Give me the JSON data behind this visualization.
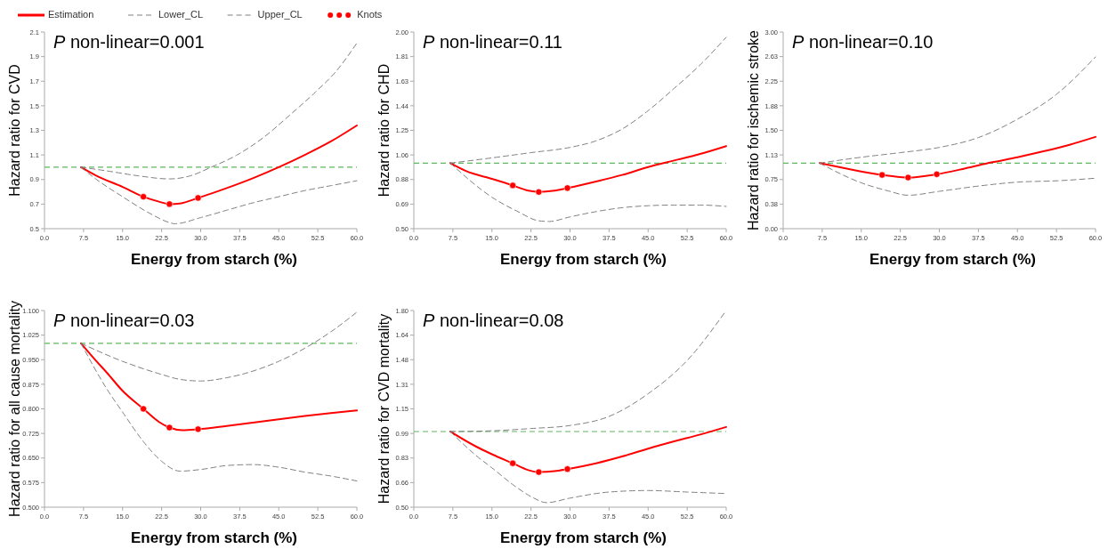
{
  "chart_data": [
    {
      "type": "line",
      "ylabel": "Hazard ratio for CVD",
      "xlabel": "Energy from starch (%)",
      "annotations": [
        "P non-linear=0.001"
      ],
      "legend": "top",
      "xlim": [
        0,
        60
      ],
      "ylim": [
        0.5,
        2.1
      ],
      "xticks": [
        {
          "value": 0,
          "label": "0.0"
        },
        7.5,
        {
          "value": 15,
          "label": "15.0"
        },
        22.5,
        {
          "value": 30,
          "label": "30.0"
        },
        37.5,
        {
          "value": 45,
          "label": "45.0"
        },
        52.5,
        {
          "value": 60,
          "label": "60.0"
        }
      ],
      "yticks": [
        0.5,
        0.7,
        0.9,
        1.1,
        1.3,
        1.5,
        1.7,
        1.9,
        2.1
      ],
      "ref_lines": [
        {
          "axis": "y",
          "value": 1,
          "color": "#5cb85c",
          "line_style": "dashed"
        }
      ],
      "series": [
        {
          "name": "Estimation",
          "type": "line",
          "color": "#ff0000",
          "line_style": "solid",
          "x": [
            7,
            10,
            15,
            19,
            22,
            24,
            26,
            29.5,
            35,
            40,
            45,
            50,
            55,
            60
          ],
          "values": [
            1.0,
            0.93,
            0.84,
            0.76,
            0.72,
            0.7,
            0.705,
            0.75,
            0.83,
            0.91,
            1.0,
            1.1,
            1.21,
            1.34
          ]
        },
        {
          "name": "Lower_CL",
          "type": "line",
          "color": "#808080",
          "line_style": "dashed",
          "x": [
            7,
            10,
            15,
            20,
            24,
            25,
            30,
            35,
            40,
            45,
            50,
            55,
            60
          ],
          "values": [
            1.0,
            0.9,
            0.76,
            0.63,
            0.55,
            0.54,
            0.59,
            0.65,
            0.71,
            0.76,
            0.81,
            0.85,
            0.89
          ]
        },
        {
          "name": "Upper_CL",
          "type": "line",
          "color": "#808080",
          "line_style": "dashed",
          "x": [
            7,
            12,
            18,
            24,
            28,
            32,
            37,
            42,
            47,
            52,
            56,
            60
          ],
          "values": [
            1.0,
            0.97,
            0.93,
            0.905,
            0.93,
            1.0,
            1.1,
            1.24,
            1.42,
            1.61,
            1.78,
            2.01
          ]
        },
        {
          "name": "Knots",
          "type": "scatter",
          "color": "#ff0000",
          "marker": "circle",
          "x": [
            19,
            24,
            29.5
          ],
          "values": [
            0.76,
            0.7,
            0.75
          ]
        }
      ]
    },
    {
      "type": "line",
      "ylabel": "Hazard ratio for CHD",
      "xlabel": "Energy from starch (%)",
      "annotations": [
        "P non-linear=0.11"
      ],
      "legend": false,
      "xlim": [
        0,
        60
      ],
      "ylim": [
        0.5,
        2.0
      ],
      "xticks": [
        {
          "value": 0,
          "label": "0.0"
        },
        7.5,
        {
          "value": 15,
          "label": "15.0"
        },
        22.5,
        {
          "value": 30,
          "label": "30.0"
        },
        37.5,
        {
          "value": 45,
          "label": "45.0"
        },
        52.5,
        {
          "value": 60,
          "label": "60.0"
        }
      ],
      "yticks": [
        {
          "value": 0.5,
          "label": "0.50"
        },
        {
          "value": 0.6875,
          "label": "0.69"
        },
        {
          "value": 0.875,
          "label": "0.88"
        },
        {
          "value": 1.0625,
          "label": "1.06"
        },
        {
          "value": 1.25,
          "label": "1.25"
        },
        {
          "value": 1.4375,
          "label": "1.44"
        },
        {
          "value": 1.625,
          "label": "1.63"
        },
        {
          "value": 1.8125,
          "label": "1.81"
        },
        {
          "value": 2.0,
          "label": "2.00"
        }
      ],
      "ref_lines": [
        {
          "axis": "y",
          "value": 1,
          "color": "#5cb85c",
          "line_style": "dashed"
        }
      ],
      "series": [
        {
          "type": "line",
          "color": "#ff0000",
          "line_style": "solid",
          "x": [
            7,
            10,
            15,
            19,
            22,
            24,
            27,
            29.5,
            35,
            40,
            45,
            50,
            55,
            60
          ],
          "values": [
            1.0,
            0.94,
            0.88,
            0.83,
            0.79,
            0.78,
            0.79,
            0.81,
            0.86,
            0.91,
            0.97,
            1.02,
            1.07,
            1.13
          ]
        },
        {
          "type": "line",
          "color": "#808080",
          "line_style": "dashed",
          "x": [
            7,
            15,
            20,
            24,
            26,
            30,
            35,
            40,
            45,
            50,
            55,
            60
          ],
          "values": [
            1.0,
            0.74,
            0.63,
            0.56,
            0.555,
            0.59,
            0.63,
            0.66,
            0.675,
            0.68,
            0.68,
            0.67
          ]
        },
        {
          "type": "line",
          "color": "#808080",
          "line_style": "dashed",
          "x": [
            7,
            15,
            22.5,
            30,
            35,
            40,
            45,
            50,
            55,
            60
          ],
          "values": [
            1.0,
            1.04,
            1.08,
            1.12,
            1.17,
            1.26,
            1.4,
            1.57,
            1.75,
            1.96
          ]
        },
        {
          "type": "scatter",
          "color": "#ff0000",
          "marker": "circle",
          "x": [
            19,
            24,
            29.5
          ],
          "values": [
            0.83,
            0.78,
            0.81
          ]
        }
      ]
    },
    {
      "type": "line",
      "ylabel": "Hazard ratio for ischemic stroke",
      "xlabel": "Energy from starch (%)",
      "annotations": [
        "P non-linear=0.10"
      ],
      "legend": false,
      "xlim": [
        0,
        60
      ],
      "ylim": [
        0,
        3
      ],
      "xticks": [
        {
          "value": 0,
          "label": "0.0"
        },
        7.5,
        {
          "value": 15,
          "label": "15.0"
        },
        22.5,
        {
          "value": 30,
          "label": "30.0"
        },
        37.5,
        {
          "value": 45,
          "label": "45.0"
        },
        52.5,
        {
          "value": 60,
          "label": "60.0"
        }
      ],
      "yticks": [
        {
          "value": 0,
          "label": "0.00"
        },
        {
          "value": 0.375,
          "label": "0.38"
        },
        {
          "value": 0.75,
          "label": "0.75"
        },
        {
          "value": 1.125,
          "label": "1.13"
        },
        {
          "value": 1.5,
          "label": "1.50"
        },
        {
          "value": 1.875,
          "label": "1.88"
        },
        {
          "value": 2.25,
          "label": "2.25"
        },
        {
          "value": 2.625,
          "label": "2.63"
        },
        {
          "value": 3,
          "label": "3.00"
        }
      ],
      "ref_lines": [
        {
          "axis": "y",
          "value": 1,
          "color": "#5cb85c",
          "line_style": "dashed"
        }
      ],
      "series": [
        {
          "type": "line",
          "color": "#ff0000",
          "line_style": "solid",
          "x": [
            7,
            12,
            19,
            24,
            29.5,
            35,
            40,
            45,
            50,
            55,
            60
          ],
          "values": [
            1.0,
            0.92,
            0.82,
            0.78,
            0.83,
            0.92,
            1.01,
            1.09,
            1.18,
            1.28,
            1.4
          ]
        },
        {
          "type": "line",
          "color": "#808080",
          "line_style": "dashed",
          "x": [
            7,
            15,
            20,
            24,
            30,
            37.5,
            45,
            52.5,
            60
          ],
          "values": [
            1.0,
            0.7,
            0.58,
            0.51,
            0.57,
            0.65,
            0.71,
            0.73,
            0.77
          ]
        },
        {
          "type": "line",
          "color": "#808080",
          "line_style": "dashed",
          "x": [
            7,
            15,
            22.5,
            30,
            37.5,
            45,
            52.5,
            60
          ],
          "values": [
            1.0,
            1.09,
            1.16,
            1.24,
            1.39,
            1.67,
            2.05,
            2.62
          ]
        },
        {
          "type": "scatter",
          "color": "#ff0000",
          "marker": "circle",
          "x": [
            19,
            24,
            29.5
          ],
          "values": [
            0.82,
            0.78,
            0.83
          ]
        }
      ]
    },
    {
      "type": "line",
      "ylabel": "Hazard ratio for all cause mortality",
      "xlabel": "Energy from starch (%)",
      "annotations": [
        "P non-linear=0.03"
      ],
      "legend": false,
      "xlim": [
        0,
        60
      ],
      "ylim": [
        0.5,
        1.1
      ],
      "xticks": [
        {
          "value": 0,
          "label": "0.0"
        },
        7.5,
        {
          "value": 15,
          "label": "15.0"
        },
        22.5,
        {
          "value": 30,
          "label": "30.0"
        },
        37.5,
        {
          "value": 45,
          "label": "45.0"
        },
        52.5,
        {
          "value": 60,
          "label": "60.0"
        }
      ],
      "yticks": [
        {
          "value": 0.5,
          "label": "0.500"
        },
        0.575,
        {
          "value": 0.65,
          "label": "0.650"
        },
        0.725,
        {
          "value": 0.8,
          "label": "0.800"
        },
        0.875,
        {
          "value": 0.95,
          "label": "0.950"
        },
        1.025,
        {
          "value": 1.1,
          "label": "1.100"
        }
      ],
      "ref_lines": [
        {
          "axis": "y",
          "value": 1,
          "color": "#5cb85c",
          "line_style": "dashed"
        }
      ],
      "series": [
        {
          "type": "line",
          "color": "#ff0000",
          "line_style": "solid",
          "x": [
            7,
            10,
            12,
            15,
            19,
            22,
            24,
            26.5,
            29.5,
            35,
            40,
            45,
            50,
            55,
            60
          ],
          "values": [
            1.0,
            0.945,
            0.91,
            0.855,
            0.8,
            0.76,
            0.743,
            0.735,
            0.738,
            0.748,
            0.758,
            0.768,
            0.778,
            0.787,
            0.795
          ]
        },
        {
          "type": "line",
          "color": "#808080",
          "line_style": "dashed",
          "x": [
            7,
            12,
            15,
            19,
            22.5,
            26,
            30,
            35,
            40,
            45,
            50,
            55,
            60
          ],
          "values": [
            1.0,
            0.86,
            0.79,
            0.7,
            0.64,
            0.61,
            0.615,
            0.627,
            0.63,
            0.622,
            0.607,
            0.595,
            0.58
          ]
        },
        {
          "type": "line",
          "color": "#808080",
          "line_style": "dashed",
          "x": [
            7,
            15,
            22.5,
            26,
            30,
            35,
            40,
            45,
            50,
            55,
            60
          ],
          "values": [
            1.0,
            0.945,
            0.905,
            0.89,
            0.885,
            0.895,
            0.915,
            0.945,
            0.985,
            1.035,
            1.095
          ]
        },
        {
          "type": "scatter",
          "color": "#ff0000",
          "marker": "circle",
          "x": [
            19,
            24,
            29.5
          ],
          "values": [
            0.8,
            0.743,
            0.738
          ]
        }
      ]
    },
    {
      "type": "line",
      "ylabel": "Hazard ratio for CVD mortality",
      "xlabel": "Energy from starch (%)",
      "annotations": [
        "P non-linear=0.08"
      ],
      "legend": false,
      "xlim": [
        0,
        60
      ],
      "ylim": [
        0.5,
        1.8
      ],
      "xticks": [
        {
          "value": 0,
          "label": "0.0"
        },
        7.5,
        {
          "value": 15,
          "label": "15.0"
        },
        22.5,
        {
          "value": 30,
          "label": "30.0"
        },
        37.5,
        {
          "value": 45,
          "label": "45.0"
        },
        52.5,
        {
          "value": 60,
          "label": "60.0"
        }
      ],
      "yticks": [
        {
          "value": 0.5,
          "label": "0.50"
        },
        {
          "value": 0.6625,
          "label": "0.66"
        },
        {
          "value": 0.825,
          "label": "0.83"
        },
        {
          "value": 0.9875,
          "label": "0.99"
        },
        {
          "value": 1.15,
          "label": "1.15"
        },
        {
          "value": 1.3125,
          "label": "1.31"
        },
        {
          "value": 1.475,
          "label": "1.48"
        },
        {
          "value": 1.6375,
          "label": "1.64"
        },
        {
          "value": 1.8,
          "label": "1.80"
        }
      ],
      "ref_lines": [
        {
          "axis": "y",
          "value": 1,
          "color": "#5cb85c",
          "line_style": "dashed"
        }
      ],
      "series": [
        {
          "type": "line",
          "color": "#ff0000",
          "line_style": "solid",
          "x": [
            7,
            12,
            15,
            19,
            22,
            24,
            27,
            29.5,
            35,
            40,
            45,
            50,
            55,
            60
          ],
          "values": [
            1.0,
            0.9,
            0.85,
            0.79,
            0.745,
            0.732,
            0.738,
            0.752,
            0.79,
            0.835,
            0.887,
            0.935,
            0.98,
            1.03
          ]
        },
        {
          "type": "line",
          "color": "#808080",
          "line_style": "dashed",
          "x": [
            7,
            12,
            15,
            19,
            22.5,
            25.5,
            30,
            37.5,
            45,
            52.5,
            60
          ],
          "values": [
            1.0,
            0.84,
            0.76,
            0.65,
            0.57,
            0.53,
            0.56,
            0.6,
            0.61,
            0.6,
            0.59
          ]
        },
        {
          "type": "line",
          "color": "#808080",
          "line_style": "dashed",
          "x": [
            7,
            15,
            22.5,
            30,
            37.5,
            45,
            52.5,
            60
          ],
          "values": [
            1.0,
            1.005,
            1.02,
            1.04,
            1.1,
            1.25,
            1.47,
            1.8
          ]
        },
        {
          "type": "scatter",
          "color": "#ff0000",
          "marker": "circle",
          "x": [
            19,
            24,
            29.5
          ],
          "values": [
            0.79,
            0.732,
            0.752
          ]
        }
      ]
    }
  ]
}
